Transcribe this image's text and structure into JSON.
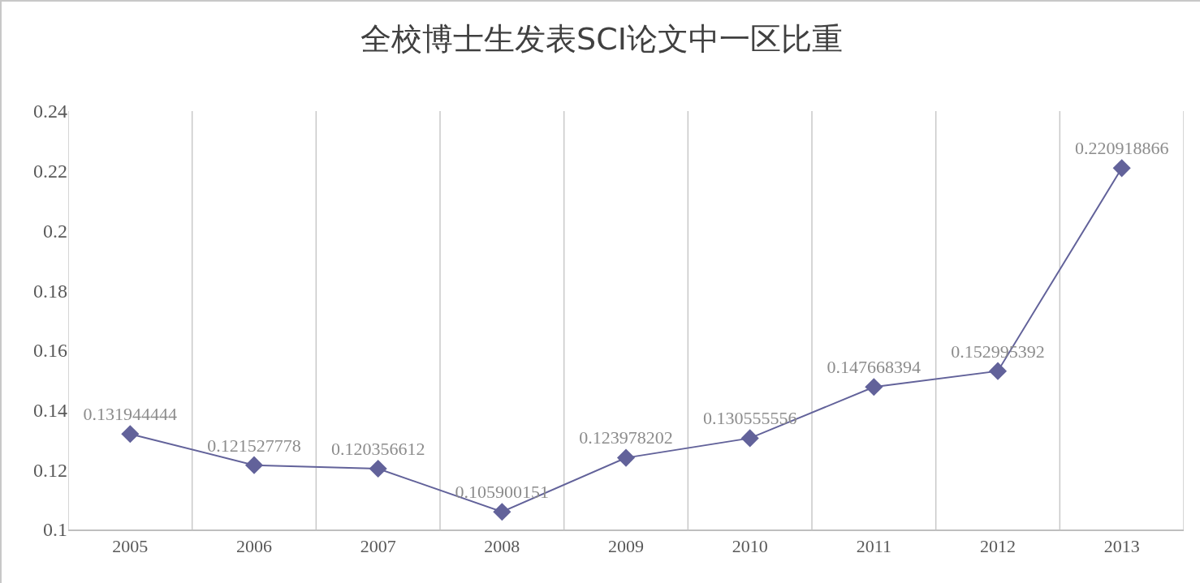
{
  "chart_data": {
    "type": "line",
    "title": "全校博士生发表SCI论文中一区比重",
    "categories": [
      "2005",
      "2006",
      "2007",
      "2008",
      "2009",
      "2010",
      "2011",
      "2012",
      "2013"
    ],
    "series": [
      {
        "color": "#62629a",
        "values": [
          0.131944444,
          0.121527778,
          0.120356612,
          0.105900151,
          0.123978202,
          0.130555556,
          0.147668394,
          0.152995392,
          0.220918866
        ]
      }
    ],
    "ylim": [
      0.1,
      0.24
    ],
    "yticks": [
      0.1,
      0.12,
      0.14,
      0.16,
      0.18,
      0.2,
      0.22,
      0.24
    ],
    "grid": "x",
    "marker": "diamond",
    "line_style": "solid",
    "data_labels": true
  }
}
